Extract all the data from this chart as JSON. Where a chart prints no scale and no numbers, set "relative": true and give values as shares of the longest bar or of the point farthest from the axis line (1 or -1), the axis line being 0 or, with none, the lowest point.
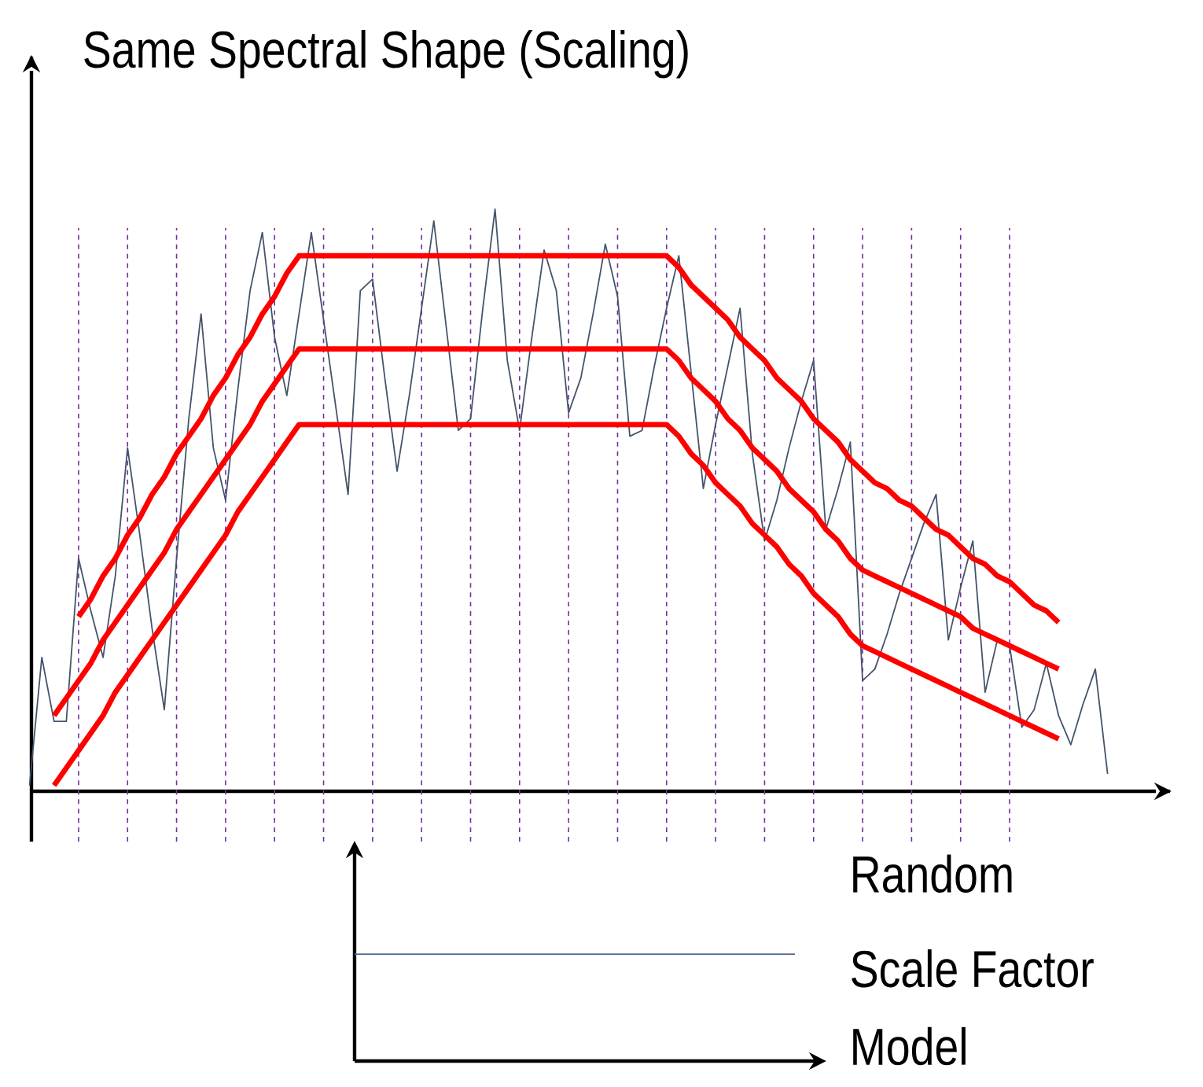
{
  "chart_data": [
    {
      "type": "line",
      "title": "Same Spectral Shape (Scaling)",
      "relative": true,
      "tick_labels": false,
      "categories": [
        null,
        null,
        null,
        null,
        null,
        null,
        null,
        null,
        null,
        null,
        null,
        null,
        null,
        null,
        null,
        null,
        null,
        null,
        null,
        null,
        null,
        null,
        null,
        null,
        null,
        null,
        null,
        null,
        null,
        null,
        null,
        null,
        null,
        null,
        null,
        null,
        null,
        null,
        null,
        null,
        null,
        null,
        null,
        null,
        null,
        null,
        null,
        null,
        null,
        null,
        null,
        null,
        null,
        null,
        null,
        null,
        null,
        null,
        null,
        null,
        null,
        null,
        null,
        null,
        null,
        null,
        null,
        null,
        null,
        null,
        null,
        null,
        null,
        null,
        null,
        null,
        null,
        null,
        null,
        null,
        null,
        null,
        null,
        null,
        null,
        null,
        null,
        null,
        null
      ],
      "series": [
        {
          "color": "#44546a",
          "values": [
            0.01,
            0.23,
            0.12,
            0.12,
            0.4,
            0.31,
            0.23,
            0.37,
            0.59,
            0.44,
            0.28,
            0.14,
            0.4,
            0.64,
            0.82,
            0.59,
            0.5,
            0.69,
            0.86,
            0.96,
            0.78,
            0.68,
            0.82,
            0.96,
            0.81,
            0.66,
            0.51,
            0.86,
            0.88,
            0.71,
            0.55,
            0.68,
            0.83,
            0.98,
            0.8,
            0.62,
            0.64,
            0.83,
            1.0,
            0.74,
            0.62,
            0.78,
            0.93,
            0.86,
            0.65,
            0.71,
            0.82,
            0.94,
            0.85,
            0.61,
            0.62,
            0.73,
            0.83,
            0.92,
            0.72,
            0.52,
            0.63,
            0.73,
            0.83,
            0.58,
            0.43,
            0.5,
            0.59,
            0.67,
            0.74,
            0.45,
            0.52,
            0.6,
            0.19,
            0.21,
            0.27,
            0.34,
            0.4,
            0.46,
            0.51,
            0.26,
            0.35,
            0.43,
            0.17,
            0.26,
            0.25,
            0.11,
            0.14,
            0.22,
            0.13,
            0.08,
            0.15,
            0.21,
            0.03
          ]
        },
        {
          "color": "#ff0000",
          "values": [
            null,
            null,
            null,
            null,
            0.3,
            0.33,
            0.37,
            0.4,
            0.44,
            0.47,
            0.51,
            0.54,
            0.58,
            0.61,
            0.64,
            0.68,
            0.71,
            0.75,
            0.78,
            0.82,
            0.85,
            0.89,
            0.92,
            0.92,
            0.92,
            0.92,
            0.92,
            0.92,
            0.92,
            0.92,
            0.92,
            0.92,
            0.92,
            0.92,
            0.92,
            0.92,
            0.92,
            0.92,
            0.92,
            0.92,
            0.92,
            0.92,
            0.92,
            0.92,
            0.92,
            0.92,
            0.92,
            0.92,
            0.92,
            0.92,
            0.92,
            0.92,
            0.92,
            0.9,
            0.87,
            0.85,
            0.83,
            0.81,
            0.78,
            0.76,
            0.74,
            0.71,
            0.69,
            0.67,
            0.64,
            0.62,
            0.6,
            0.57,
            0.55,
            0.53,
            0.52,
            0.5,
            0.49,
            0.47,
            0.45,
            0.44,
            0.42,
            0.4,
            0.39,
            0.37,
            0.36,
            0.34,
            0.32,
            0.31,
            0.29,
            null,
            null,
            null,
            null
          ]
        },
        {
          "color": "#ff0000",
          "values": [
            null,
            null,
            0.13,
            0.16,
            0.19,
            0.22,
            0.26,
            0.29,
            0.32,
            0.35,
            0.38,
            0.41,
            0.45,
            0.48,
            0.51,
            0.54,
            0.57,
            0.6,
            0.63,
            0.67,
            0.7,
            0.73,
            0.76,
            0.76,
            0.76,
            0.76,
            0.76,
            0.76,
            0.76,
            0.76,
            0.76,
            0.76,
            0.76,
            0.76,
            0.76,
            0.76,
            0.76,
            0.76,
            0.76,
            0.76,
            0.76,
            0.76,
            0.76,
            0.76,
            0.76,
            0.76,
            0.76,
            0.76,
            0.76,
            0.76,
            0.76,
            0.76,
            0.76,
            0.74,
            0.71,
            0.69,
            0.67,
            0.64,
            0.62,
            0.59,
            0.57,
            0.55,
            0.52,
            0.5,
            0.48,
            0.45,
            0.43,
            0.4,
            0.38,
            0.37,
            0.36,
            0.35,
            0.34,
            0.33,
            0.32,
            0.31,
            0.3,
            0.28,
            0.27,
            0.26,
            0.25,
            0.24,
            0.23,
            0.22,
            0.21,
            null,
            null,
            null,
            null
          ]
        },
        {
          "color": "#ff0000",
          "values": [
            null,
            null,
            0.01,
            0.04,
            0.07,
            0.1,
            0.13,
            0.17,
            0.2,
            0.23,
            0.26,
            0.29,
            0.32,
            0.35,
            0.38,
            0.41,
            0.44,
            0.48,
            0.51,
            0.54,
            0.57,
            0.6,
            0.63,
            0.63,
            0.63,
            0.63,
            0.63,
            0.63,
            0.63,
            0.63,
            0.63,
            0.63,
            0.63,
            0.63,
            0.63,
            0.63,
            0.63,
            0.63,
            0.63,
            0.63,
            0.63,
            0.63,
            0.63,
            0.63,
            0.63,
            0.63,
            0.63,
            0.63,
            0.63,
            0.63,
            0.63,
            0.63,
            0.63,
            0.61,
            0.58,
            0.56,
            0.53,
            0.51,
            0.49,
            0.46,
            0.44,
            0.42,
            0.39,
            0.37,
            0.34,
            0.32,
            0.3,
            0.27,
            0.25,
            0.24,
            0.23,
            0.22,
            0.21,
            0.2,
            0.19,
            0.18,
            0.17,
            0.16,
            0.15,
            0.14,
            0.13,
            0.12,
            0.11,
            0.1,
            0.09,
            null,
            null,
            null,
            null
          ]
        }
      ],
      "grid": "x"
    },
    {
      "type": "other",
      "annotations": [
        "Random",
        "Scale Factor",
        "Model"
      ]
    }
  ]
}
